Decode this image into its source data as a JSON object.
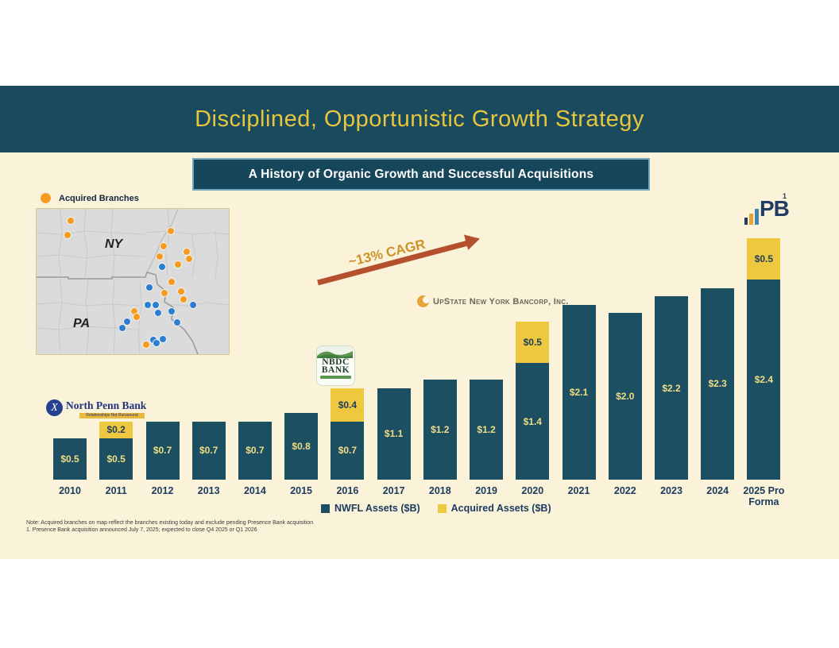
{
  "header": {
    "title": "Disciplined, Opportunistic Growth Strategy",
    "banner": "A History of Organic Growth and Successful Acquisitions"
  },
  "colors": {
    "title_bar_bg": "#1a4a5e",
    "slide_bg": "#faf3da",
    "title_text": "#e7c63e",
    "bar_navy": "#1d4f63",
    "bar_gold": "#eec93f",
    "navy_text": "#1b3a5c",
    "arrow_rust": "#b4502e",
    "cagr_text": "#cf9229",
    "acquired_dot_orange": "#f79b1c",
    "branch_dot_blue": "#2d7ed2"
  },
  "map": {
    "legend_label": "Acquired Branches",
    "region_labels": [
      {
        "text": "NY"
      },
      {
        "text": "PA"
      }
    ],
    "acquired_dots": [
      [
        42,
        14
      ],
      [
        38,
        32
      ],
      [
        168,
        27
      ],
      [
        159,
        46
      ],
      [
        154,
        59
      ],
      [
        188,
        53
      ],
      [
        191,
        62
      ],
      [
        177,
        69
      ],
      [
        169,
        91
      ],
      [
        160,
        105
      ],
      [
        181,
        103
      ],
      [
        184,
        113
      ],
      [
        122,
        128
      ],
      [
        125,
        135
      ],
      [
        137,
        170
      ]
    ],
    "organic_dots": [
      [
        157,
        72
      ],
      [
        141,
        98
      ],
      [
        139,
        120
      ],
      [
        149,
        120
      ],
      [
        152,
        130
      ],
      [
        169,
        128
      ],
      [
        196,
        120
      ],
      [
        176,
        142
      ],
      [
        113,
        141
      ],
      [
        107,
        149
      ],
      [
        146,
        164
      ],
      [
        150,
        168
      ],
      [
        158,
        163
      ]
    ]
  },
  "logos": {
    "north_penn": {
      "monogram": "X",
      "name": "North Penn Bank",
      "tagline": "Relationships Not Runaround"
    },
    "nbdc": {
      "line1": "NBDC",
      "line2": "BANK"
    },
    "upstate": {
      "name": "UpState New York Bancorp, Inc."
    },
    "pb": {
      "text": "PB",
      "footnote_ref": "1"
    }
  },
  "annotation": {
    "cagr_label": "~13% CAGR"
  },
  "chart_data": {
    "type": "bar",
    "stacked": true,
    "title": "",
    "xlabel": "",
    "ylabel": "",
    "value_prefix": "$",
    "units": "$B",
    "legend_position": "bottom",
    "grid": false,
    "categories": [
      "2010",
      "2011",
      "2012",
      "2013",
      "2014",
      "2015",
      "2016",
      "2017",
      "2018",
      "2019",
      "2020",
      "2021",
      "2022",
      "2023",
      "2024",
      "2025 Pro Forma"
    ],
    "series": [
      {
        "name": "NWFL Assets ($B)",
        "color": "#1d4f63",
        "label_color": "#f0dd85",
        "values": [
          0.5,
          0.5,
          0.7,
          0.7,
          0.7,
          0.8,
          0.7,
          1.1,
          1.2,
          1.2,
          1.4,
          2.1,
          2.0,
          2.2,
          2.3,
          2.4
        ]
      },
      {
        "name": "Acquired Assets ($B)",
        "color": "#eec93f",
        "label_color": "#1c3c5e",
        "values": [
          0,
          0.2,
          0,
          0,
          0,
          0,
          0.4,
          0,
          0,
          0,
          0.5,
          0,
          0,
          0,
          0,
          0.5
        ]
      }
    ]
  },
  "footnotes": {
    "line1": "Note: Acquired branches on map reflect the branches existing today and exclude pending Presence Bank acquisition",
    "line2": "1. Presence Bank acquisition announced July 7, 2025; expected to close Q4 2025 or Q1 2026"
  }
}
